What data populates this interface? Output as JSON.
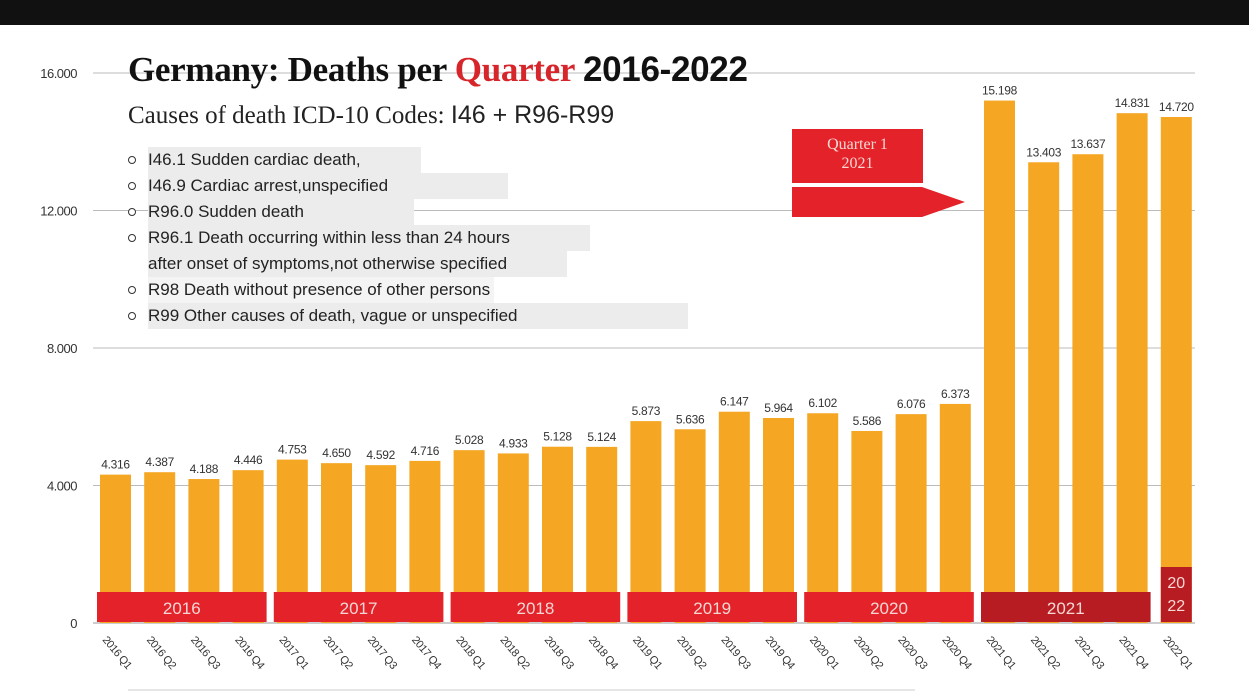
{
  "title": {
    "prefix": "Germany: Deaths per",
    "accent_word": "Quarter",
    "years": "2016-2022"
  },
  "subtitle": {
    "prefix": "Causes of death ICD-10 Codes:",
    "codes": "I46 + R96-R99"
  },
  "codes_list": [
    "I46.1 Sudden cardiac death,",
    "I46.9 Cardiac arrest,unspecified",
    "R96.0 Sudden death",
    "R96.1 Death occurring within less than 24 hours",
    "after onset of symptoms,not otherwise specified",
    "R98 Death without presence of other persons",
    "R99 Other causes of death, vague or unspecified"
  ],
  "callout": {
    "line1": "Quarter 1",
    "line2": "2021"
  },
  "colors": {
    "bar": "#f5a623",
    "year_band": "#e3222a",
    "year_band_2021": "#b71c22",
    "title_accent": "#d7262b",
    "grid": "#bbbbbb"
  },
  "chart_data": {
    "type": "bar",
    "title": "Germany: Deaths per Quarter 2016-2022",
    "subtitle": "Causes of death ICD-10 Codes: I46 + R96-R99",
    "xlabel": "",
    "ylabel": "",
    "ylim": [
      0,
      16000
    ],
    "yticks": [
      0,
      4000,
      8000,
      12000,
      16000
    ],
    "ytick_labels": [
      "0",
      "4.000",
      "8.000",
      "12.000",
      "16.000"
    ],
    "grid": true,
    "categories": [
      "2016 Q1",
      "2016 Q2",
      "2016 Q3",
      "2016 Q4",
      "2017 Q1",
      "2017 Q2",
      "2017 Q3",
      "2017 Q4",
      "2018 Q1",
      "2018 Q2",
      "2018 Q3",
      "2018 Q4",
      "2019 Q1",
      "2019 Q2",
      "2019 Q3",
      "2019 Q4",
      "2020 Q1",
      "2020 Q2",
      "2020 Q3",
      "2020 Q4",
      "2021 Q1",
      "2021 Q2",
      "2021 Q3",
      "2021 Q4",
      "2022 Q1"
    ],
    "values": [
      4316,
      4387,
      4188,
      4446,
      4753,
      4650,
      4592,
      4716,
      5028,
      4933,
      5128,
      5124,
      5873,
      5636,
      6147,
      5964,
      6102,
      5586,
      6076,
      6373,
      15198,
      13403,
      13637,
      14831,
      14720
    ],
    "value_labels": [
      "4.316",
      "4.387",
      "4.188",
      "4.446",
      "4.753",
      "4.650",
      "4.592",
      "4.716",
      "5.028",
      "4.933",
      "5.128",
      "5.124",
      "5.873",
      "5.636",
      "6.147",
      "5.964",
      "6.102",
      "5.586",
      "6.076",
      "6.373",
      "15.198",
      "13.403",
      "13.637",
      "14.831",
      "14.720"
    ],
    "year_groups": [
      {
        "label": "2016",
        "start": 0,
        "end": 3
      },
      {
        "label": "2017",
        "start": 4,
        "end": 7
      },
      {
        "label": "2018",
        "start": 8,
        "end": 11
      },
      {
        "label": "2019",
        "start": 12,
        "end": 15
      },
      {
        "label": "2020",
        "start": 16,
        "end": 19
      },
      {
        "label": "2021",
        "start": 20,
        "end": 23,
        "highlight": true
      },
      {
        "label": "2022",
        "start": 24,
        "end": 24,
        "highlight": true,
        "stacked_label": [
          "20",
          "22"
        ]
      }
    ],
    "annotation": "Quarter 1 2021"
  }
}
